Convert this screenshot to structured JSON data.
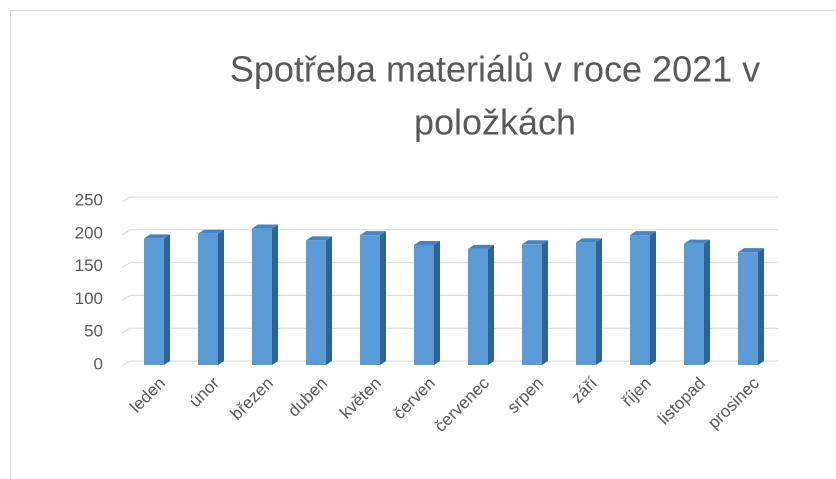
{
  "chart_data": {
    "type": "bar3d",
    "title": "Spotřeba materiálů v roce 2021 v položkách",
    "categories": [
      "leden",
      "únor",
      "březen",
      "duben",
      "květen",
      "červen",
      "červenec",
      "srpen",
      "září",
      "říjen",
      "listopad",
      "prosinec"
    ],
    "values": [
      193,
      200,
      208,
      190,
      198,
      183,
      177,
      184,
      187,
      198,
      185,
      172
    ],
    "color": "#5b9bd5",
    "ylim": [
      0,
      250
    ],
    "yticks": [
      0,
      50,
      100,
      150,
      200,
      250
    ],
    "grid": true
  }
}
